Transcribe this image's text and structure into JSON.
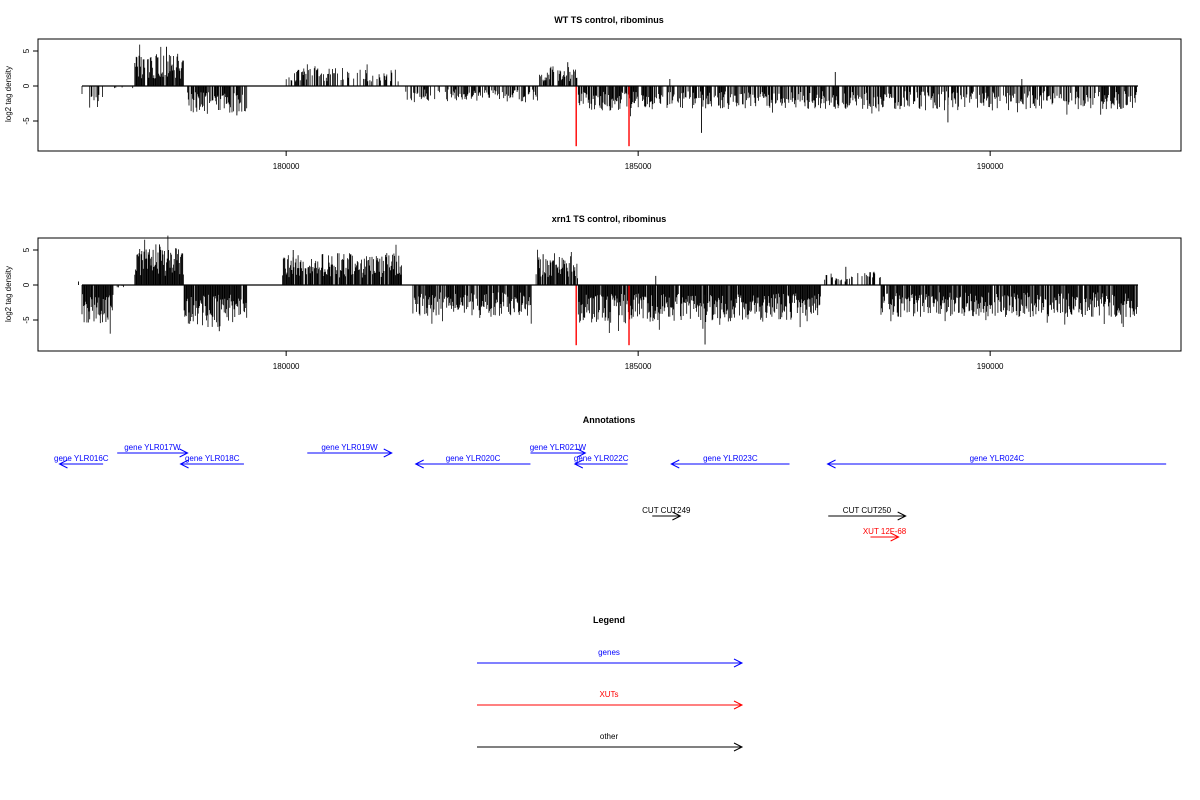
{
  "chart_data": [
    {
      "type": "bar",
      "title": "WT TS control, ribominus",
      "xlabel": "",
      "ylabel": "log2 tag density",
      "xlim": [
        177100,
        192100
      ],
      "ylim": [
        -9,
        6
      ],
      "yticks": [
        5,
        0,
        -5
      ],
      "xticks": [
        180000,
        185000,
        190000
      ],
      "tick_labels": {
        "y": [
          "5",
          "0",
          "-5"
        ],
        "x": [
          "180000",
          "185000",
          "190000"
        ]
      },
      "colors": {
        "bars": "#000000",
        "markers": "#ff0000"
      },
      "highlight_positions": [
        184120,
        184870
      ],
      "highlight_value": -8.6,
      "segments": [
        {
          "start": 177100,
          "end": 177400,
          "sign": -1,
          "amp": 3.0,
          "density": 0.5
        },
        {
          "start": 177400,
          "end": 177850,
          "sign": -1,
          "amp": 0.3,
          "density": 0.1
        },
        {
          "start": 177850,
          "end": 178550,
          "sign": 1,
          "amp": 4.2,
          "density": 0.95
        },
        {
          "start": 178600,
          "end": 179450,
          "sign": -1,
          "amp": 3.5,
          "density": 0.7
        },
        {
          "start": 180000,
          "end": 181600,
          "sign": 1,
          "amp": 2.4,
          "density": 0.45
        },
        {
          "start": 181700,
          "end": 183600,
          "sign": -1,
          "amp": 2.0,
          "density": 0.55
        },
        {
          "start": 183600,
          "end": 184150,
          "sign": 1,
          "amp": 2.6,
          "density": 0.6
        },
        {
          "start": 184150,
          "end": 185000,
          "sign": -1,
          "amp": 3.2,
          "density": 0.8
        },
        {
          "start": 185000,
          "end": 192100,
          "sign": -1,
          "amp": 3.0,
          "density": 0.65
        }
      ],
      "spikes": [
        {
          "x": 178300,
          "y": 5.6
        },
        {
          "x": 184000,
          "y": 3.4
        },
        {
          "x": 185450,
          "y": 1.0
        },
        {
          "x": 185900,
          "y": -6.7
        },
        {
          "x": 187800,
          "y": 2.0
        },
        {
          "x": 190450,
          "y": 1.0
        },
        {
          "x": 189400,
          "y": -5.2
        },
        {
          "x": 179300,
          "y": -4.2
        }
      ]
    },
    {
      "type": "bar",
      "title": "xrn1 TS control, ribominus",
      "xlabel": "",
      "ylabel": "log2 tag density",
      "xlim": [
        177100,
        192100
      ],
      "ylim": [
        -9,
        6
      ],
      "yticks": [
        5,
        0,
        -5
      ],
      "xticks": [
        180000,
        185000,
        190000
      ],
      "tick_labels": {
        "y": [
          "5",
          "0",
          "-5"
        ],
        "x": [
          "180000",
          "185000",
          "190000"
        ]
      },
      "colors": {
        "bars": "#000000",
        "markers": "#ff0000"
      },
      "highlight_positions": [
        184120,
        184870
      ],
      "highlight_value": -8.6,
      "segments": [
        {
          "start": 177100,
          "end": 177550,
          "sign": -1,
          "amp": 5.0,
          "density": 0.95
        },
        {
          "start": 177550,
          "end": 177850,
          "sign": -1,
          "amp": 0.5,
          "density": 0.2
        },
        {
          "start": 177850,
          "end": 178550,
          "sign": 1,
          "amp": 5.0,
          "density": 1.0
        },
        {
          "start": 178550,
          "end": 179450,
          "sign": -1,
          "amp": 5.5,
          "density": 0.95
        },
        {
          "start": 179950,
          "end": 181650,
          "sign": 1,
          "amp": 4.2,
          "density": 0.9
        },
        {
          "start": 181800,
          "end": 183500,
          "sign": -1,
          "amp": 4.0,
          "density": 0.85
        },
        {
          "start": 183550,
          "end": 184150,
          "sign": 1,
          "amp": 3.8,
          "density": 0.85
        },
        {
          "start": 184150,
          "end": 185000,
          "sign": -1,
          "amp": 5.0,
          "density": 0.95
        },
        {
          "start": 185000,
          "end": 187600,
          "sign": -1,
          "amp": 4.8,
          "density": 0.95
        },
        {
          "start": 187600,
          "end": 188450,
          "sign": 1,
          "amp": 1.8,
          "density": 0.35
        },
        {
          "start": 188450,
          "end": 192100,
          "sign": -1,
          "amp": 4.2,
          "density": 0.9
        }
      ],
      "spikes": [
        {
          "x": 178200,
          "y": 5.8
        },
        {
          "x": 180100,
          "y": 5.0
        },
        {
          "x": 183650,
          "y": 4.4
        },
        {
          "x": 185250,
          "y": 1.3
        },
        {
          "x": 185950,
          "y": -8.5
        },
        {
          "x": 187950,
          "y": 2.6
        },
        {
          "x": 188350,
          "y": 1.8
        },
        {
          "x": 177050,
          "y": 0.5
        },
        {
          "x": 179050,
          "y": -6.6
        }
      ]
    }
  ],
  "annotations": {
    "title": "Annotations",
    "features": [
      {
        "label": "gene YLR016C",
        "start": 177400,
        "end": 176780,
        "row": 1,
        "kind": "gene"
      },
      {
        "label": "gene YLR017W",
        "start": 177600,
        "end": 178600,
        "row": 0,
        "kind": "gene"
      },
      {
        "label": "gene YLR018C",
        "start": 179400,
        "end": 178500,
        "row": 1,
        "kind": "gene"
      },
      {
        "label": "gene YLR019W",
        "start": 180300,
        "end": 181500,
        "row": 0,
        "kind": "gene"
      },
      {
        "label": "gene YLR020C",
        "start": 183470,
        "end": 181840,
        "row": 1,
        "kind": "gene"
      },
      {
        "label": "gene YLR021W",
        "start": 183470,
        "end": 184250,
        "row": 0,
        "kind": "gene"
      },
      {
        "label": "gene YLR022C",
        "start": 184850,
        "end": 184100,
        "row": 1,
        "kind": "gene"
      },
      {
        "label": "gene YLR023C",
        "start": 187150,
        "end": 185470,
        "row": 1,
        "kind": "gene"
      },
      {
        "label": "gene YLR024C",
        "start": 192500,
        "end": 187690,
        "row": 1,
        "kind": "gene"
      },
      {
        "label": "CUT CUT249",
        "start": 185200,
        "end": 185600,
        "row": 3,
        "kind": "other"
      },
      {
        "label": "CUT CUT250",
        "start": 187700,
        "end": 188800,
        "row": 3,
        "kind": "other"
      },
      {
        "label": "XUT 12F-68",
        "start": 188300,
        "end": 188700,
        "row": 4,
        "kind": "xut"
      }
    ]
  },
  "legend": {
    "title": "Legend",
    "items": [
      {
        "label": "genes",
        "kind": "gene"
      },
      {
        "label": "XUTs",
        "kind": "xut"
      },
      {
        "label": "other",
        "kind": "other"
      }
    ]
  },
  "colors": {
    "gene": "#0000ff",
    "xut": "#ff0000",
    "other": "#000000"
  }
}
